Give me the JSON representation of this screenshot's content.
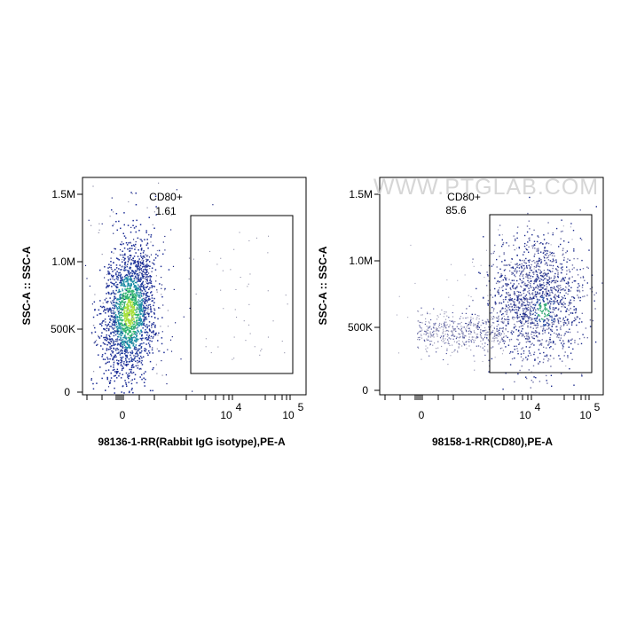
{
  "watermark": "WWW.PTGLAB.COM",
  "chart_data": [
    {
      "type": "scatter",
      "ylabel": "SSC-A :: SSC-A",
      "xlabel": "98136-1-RR(Rabbit IgG isotype),PE-A",
      "y_ticks": [
        "0",
        "500K",
        "1.0M",
        "1.5M"
      ],
      "x_ticks": [
        "0",
        "10",
        "10"
      ],
      "x_tick_exps": [
        "",
        "4",
        "5"
      ],
      "gate": {
        "name": "CD80+",
        "value": "1.61"
      },
      "y_range": [
        0,
        1600000
      ],
      "x_scale": "biexponential",
      "x_range": [
        -1000,
        100000
      ],
      "populations": [
        {
          "x_center": 0,
          "y_center": 550000,
          "note": "dense main population, density colored"
        }
      ]
    },
    {
      "type": "scatter",
      "ylabel": "SSC-A :: SSC-A",
      "xlabel": "98158-1-RR(CD80),PE-A",
      "y_ticks": [
        "0",
        "500K",
        "1.0M",
        "1.5M"
      ],
      "x_ticks": [
        "0",
        "10",
        "10"
      ],
      "x_tick_exps": [
        "",
        "4",
        "5"
      ],
      "gate": {
        "name": "CD80+",
        "value": "85.6"
      },
      "y_range": [
        0,
        1600000
      ],
      "x_scale": "biexponential",
      "x_range": [
        -1000,
        100000
      ],
      "populations": [
        {
          "x_center": 12000,
          "y_center": 580000,
          "note": "main shifted population"
        },
        {
          "x_center": 0,
          "y_center": 450000,
          "note": "sparse negative tail"
        }
      ]
    }
  ]
}
